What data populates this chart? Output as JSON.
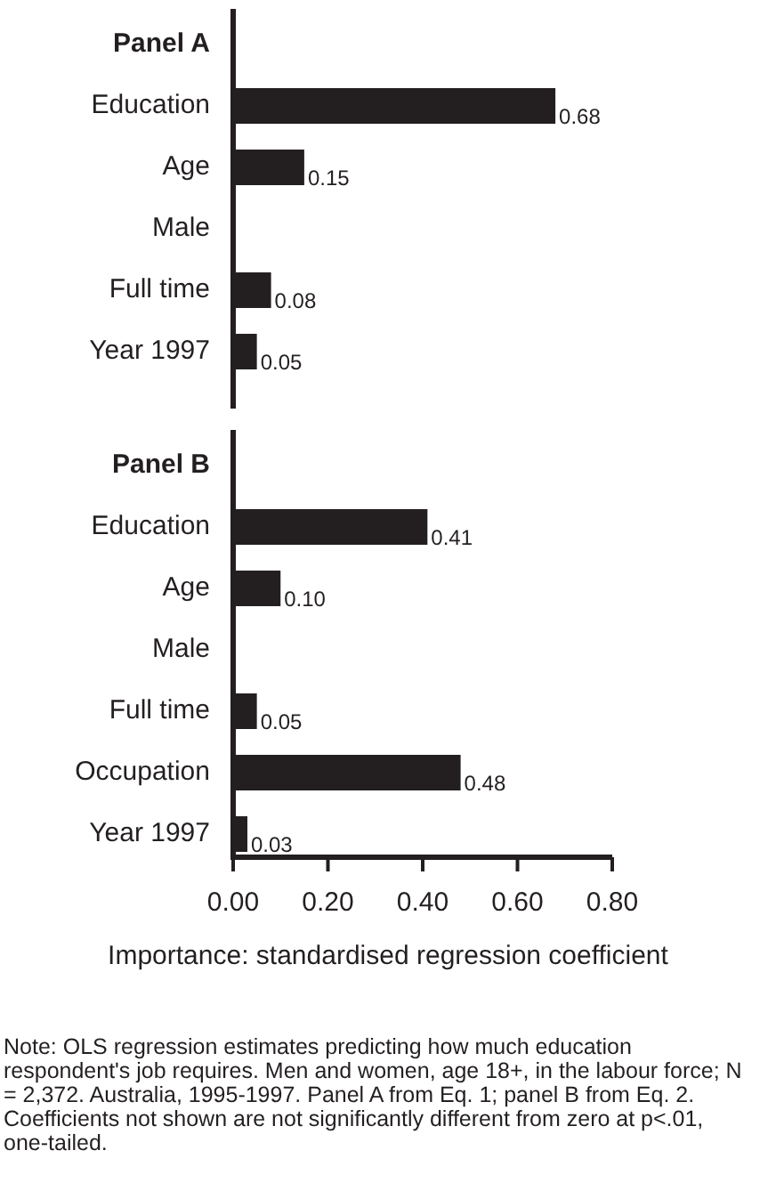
{
  "chart_data": [
    {
      "type": "bar",
      "orientation": "horizontal",
      "title": "Panel A",
      "categories": [
        "Education",
        "Age",
        "Male",
        "Full time",
        "Year 1997"
      ],
      "values": [
        0.68,
        0.15,
        null,
        0.08,
        0.05
      ],
      "value_labels": [
        "0.68",
        "0.15",
        null,
        "0.08",
        "0.05"
      ],
      "color": "#231f20",
      "xlim": [
        0,
        0.8
      ],
      "tick_labels": "y"
    },
    {
      "type": "bar",
      "orientation": "horizontal",
      "title": "Panel B",
      "categories": [
        "Education",
        "Age",
        "Male",
        "Full time",
        "Occupation",
        "Year 1997"
      ],
      "values": [
        0.41,
        0.1,
        null,
        0.05,
        0.48,
        0.03
      ],
      "value_labels": [
        "0.41",
        "0.10",
        null,
        "0.05",
        "0.48",
        "0.03"
      ],
      "color": "#231f20",
      "xlim": [
        0,
        0.8
      ],
      "xticks": [
        {
          "value": 0,
          "label": "0.00"
        },
        {
          "value": 0.2,
          "label": "0.20"
        },
        {
          "value": 0.4,
          "label": "0.40"
        },
        {
          "value": 0.6,
          "label": "0.60"
        },
        {
          "value": 0.8,
          "label": "0.80"
        }
      ],
      "xlabel": "Importance: standardised regression coefficient",
      "annotations": [
        "Note: OLS regression estimates predicting how much education respondent's job requires. Men and women, age 18+, in the labour force; N = 2,372. Australia, 1995-1997. Panel A from Eq. 1; panel B from Eq. 2.",
        "Coefficients not shown are not significantly different from zero at p<.01, one-tailed."
      ]
    }
  ]
}
